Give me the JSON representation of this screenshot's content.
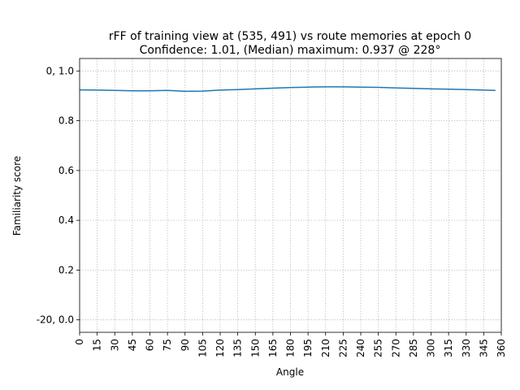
{
  "chart_data": {
    "type": "line",
    "title_line1": "rFF of training view at (535, 491) vs route memories at epoch 0",
    "title_line2": "Confidence: 1.01, (Median) maximum: 0.937 @ 228°",
    "xlabel": "Angle",
    "ylabel": "Familiarity score",
    "xlim": [
      0,
      360
    ],
    "ylim": [
      -0.05,
      1.05
    ],
    "grid": true,
    "x_ticks": [
      0,
      15,
      30,
      45,
      60,
      75,
      90,
      105,
      120,
      135,
      150,
      165,
      180,
      195,
      210,
      225,
      240,
      255,
      270,
      285,
      300,
      315,
      330,
      345,
      360
    ],
    "x_tick_labels": [
      "0",
      "15",
      "30",
      "45",
      "60",
      "75",
      "90",
      "105",
      "120",
      "135",
      "150",
      "165",
      "180",
      "195",
      "210",
      "225",
      "240",
      "255",
      "270",
      "285",
      "300",
      "315",
      "330",
      "345",
      "360"
    ],
    "y_ticks": [
      0.0,
      0.2,
      0.4,
      0.6,
      0.8,
      1.0
    ],
    "y_tick_labels": [
      "-20, 0.0",
      "0.2",
      "0.4",
      "0.6",
      "0.8",
      "0, 1.0"
    ],
    "series": [
      {
        "color": "#1f77b4",
        "x": [
          0,
          15,
          30,
          45,
          60,
          75,
          90,
          105,
          120,
          135,
          150,
          165,
          180,
          195,
          210,
          225,
          240,
          255,
          270,
          285,
          300,
          315,
          330,
          345,
          355
        ],
        "y": [
          0.924,
          0.923,
          0.922,
          0.92,
          0.92,
          0.922,
          0.918,
          0.919,
          0.923,
          0.925,
          0.928,
          0.931,
          0.933,
          0.935,
          0.936,
          0.936,
          0.935,
          0.934,
          0.932,
          0.93,
          0.928,
          0.927,
          0.925,
          0.923,
          0.922
        ]
      }
    ]
  }
}
